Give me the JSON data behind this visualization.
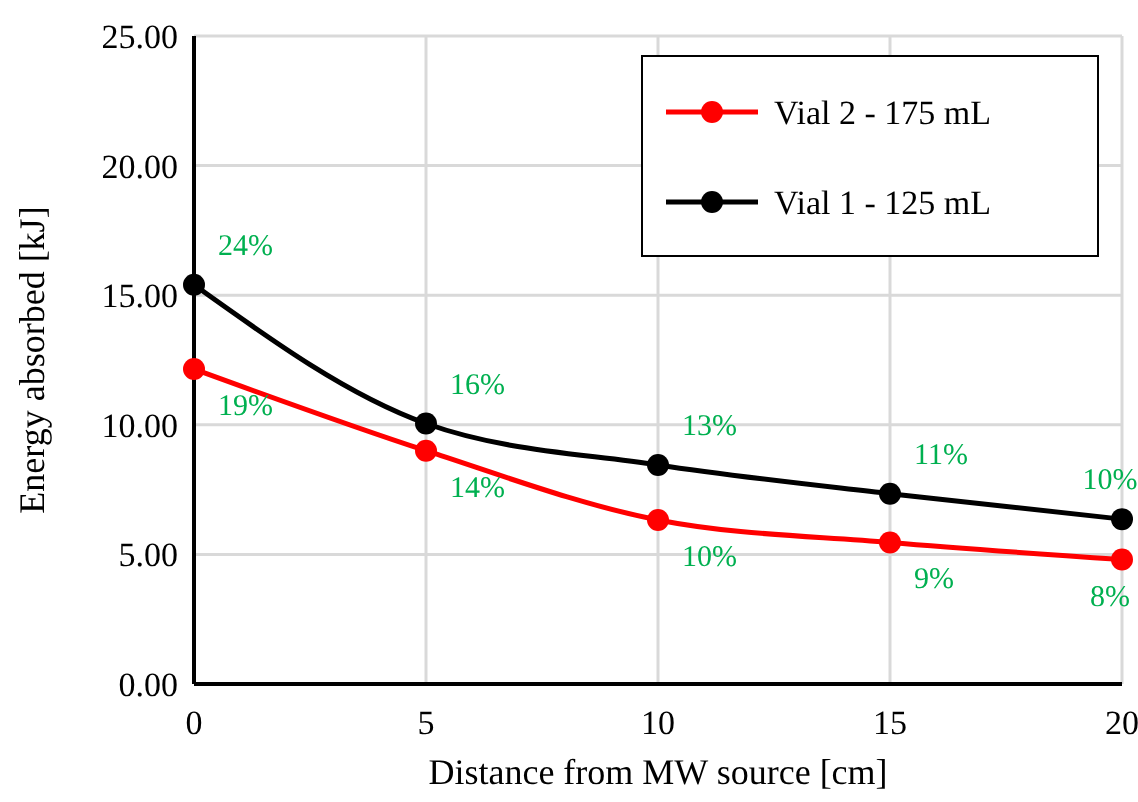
{
  "chart_data": {
    "type": "line",
    "xlabel": "Distance from MW source [cm]",
    "ylabel": "Energy absorbed [kJ]",
    "x": [
      0,
      5,
      10,
      15,
      20
    ],
    "series": [
      {
        "name": "Vial 2 - 175 mL",
        "color": "#ff0000",
        "values": [
          12.15,
          9.0,
          6.33,
          5.46,
          4.8
        ]
      },
      {
        "name": "Vial 1 - 125 mL",
        "color": "#000000",
        "values": [
          15.4,
          10.05,
          8.45,
          7.34,
          6.36
        ]
      }
    ],
    "annotations": [
      {
        "text": "19%",
        "x": 0,
        "y": 12.15
      },
      {
        "text": "14%",
        "x": 5,
        "y": 9.0
      },
      {
        "text": "10%",
        "x": 10,
        "y": 6.33
      },
      {
        "text": "9%",
        "x": 15,
        "y": 5.46
      },
      {
        "text": "8%",
        "x": 20,
        "y": 4.8
      },
      {
        "text": "24%",
        "x": 0,
        "y": 15.4
      },
      {
        "text": "16%",
        "x": 5,
        "y": 10.05
      },
      {
        "text": "13%",
        "x": 10,
        "y": 8.45
      },
      {
        "text": "11%",
        "x": 15,
        "y": 7.34
      },
      {
        "text": "10%",
        "x": 20,
        "y": 6.36
      }
    ],
    "xlim": [
      0,
      20
    ],
    "xticks": [
      0,
      5,
      10,
      15,
      20
    ],
    "ylim": [
      0,
      25
    ],
    "yticks": [
      {
        "value": 0,
        "label": "0.00"
      },
      {
        "value": 5,
        "label": "5.00"
      },
      {
        "value": 10,
        "label": "10.00"
      },
      {
        "value": 15,
        "label": "15.00"
      },
      {
        "value": 20,
        "label": "20.00"
      },
      {
        "value": 25,
        "label": "25.00"
      }
    ],
    "grid": true,
    "legend": "top right",
    "marker": "circle",
    "line_style": "solid"
  }
}
